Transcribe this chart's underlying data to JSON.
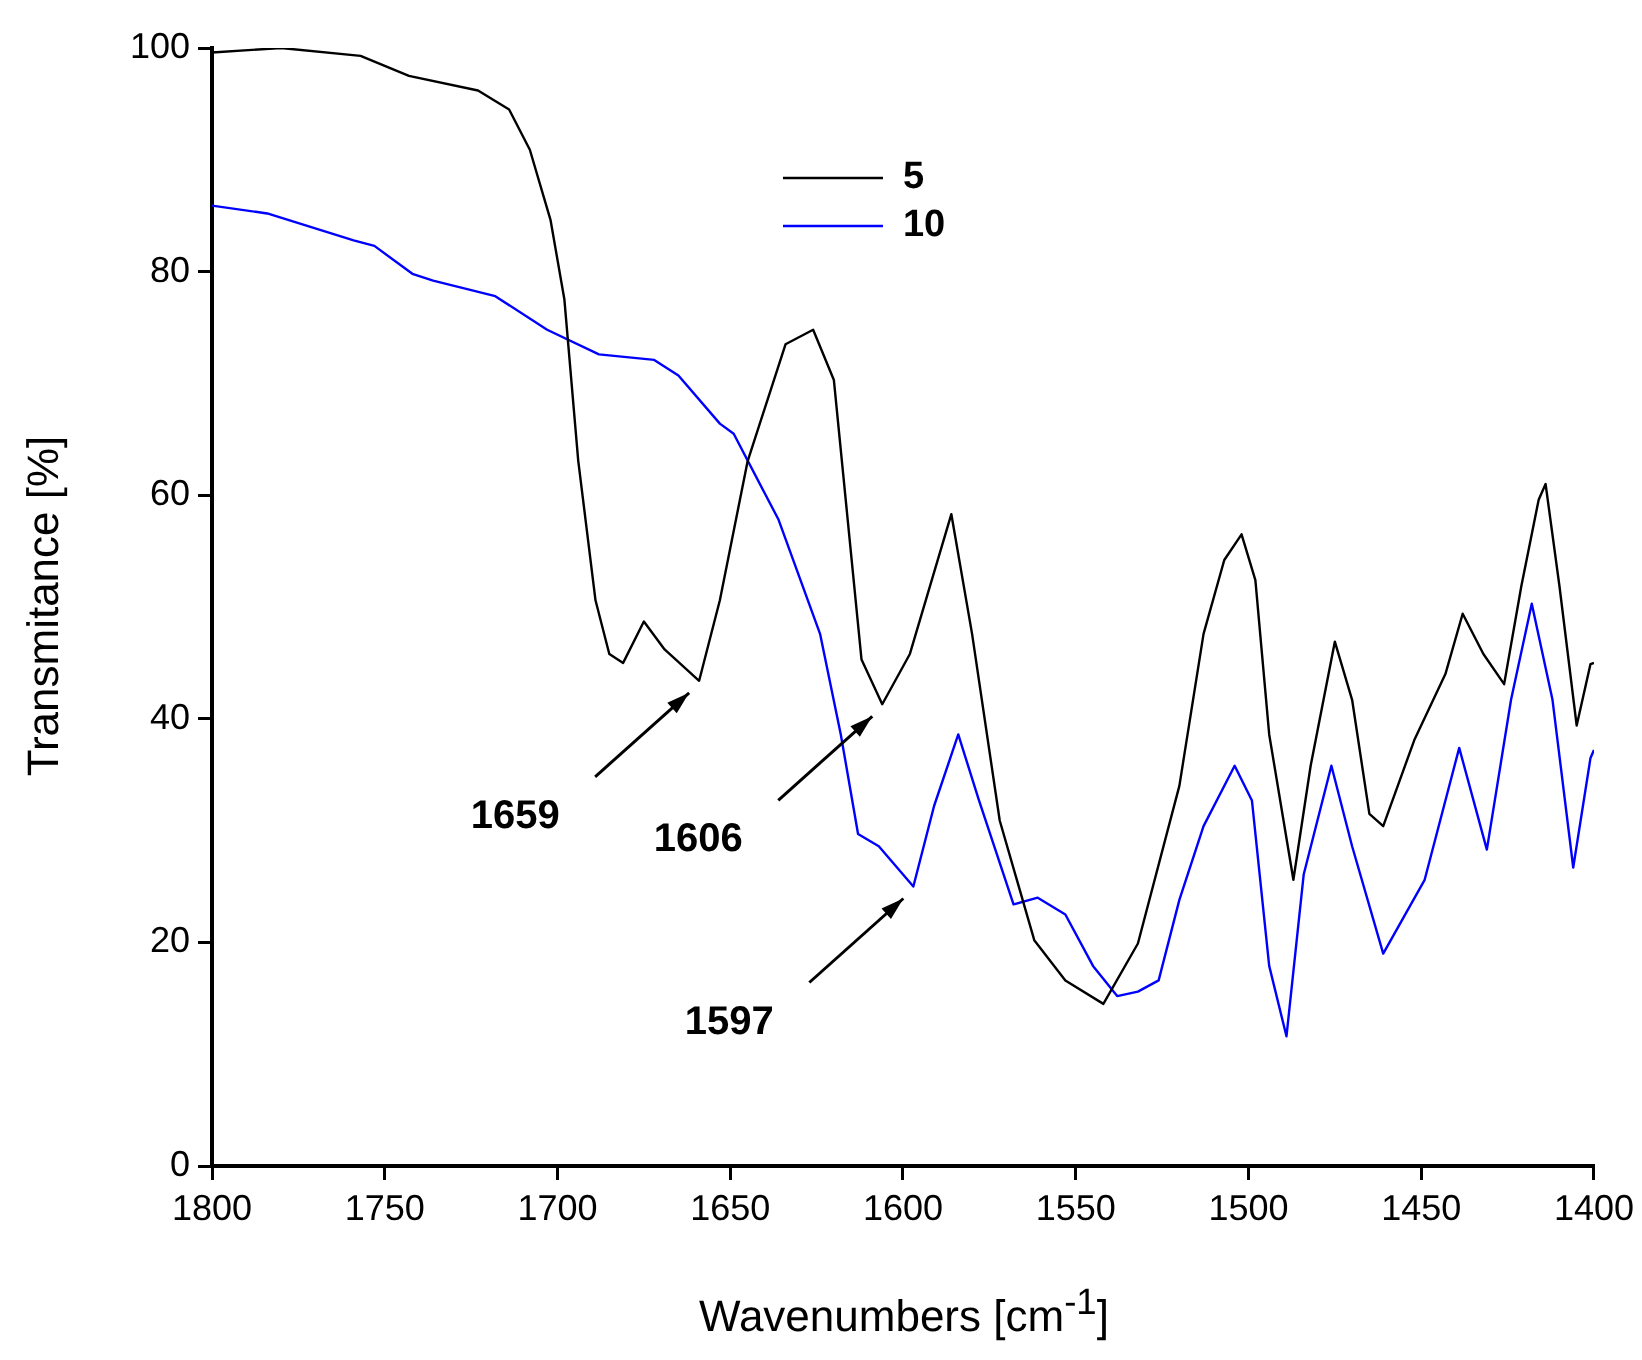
{
  "chart_data": {
    "type": "line",
    "xlabel": "Wavenumbers [cm$^{-1}$]",
    "ylabel": "Transmitance [%]",
    "xlim": [
      1800,
      1400
    ],
    "xticks": [
      1800,
      1750,
      1700,
      1650,
      1600,
      1550,
      1500,
      1450,
      1400
    ],
    "ylim": [
      0,
      100
    ],
    "yticks": [
      0,
      20,
      40,
      60,
      80,
      100
    ],
    "grid": false,
    "legend": "top",
    "marker": "none",
    "line_style": "solid",
    "series": [
      {
        "name": "5",
        "color": "#000000",
        "x": [
          1800,
          1780,
          1757,
          1743,
          1723,
          1714,
          1708,
          1702,
          1698,
          1694,
          1689,
          1685,
          1681,
          1675,
          1669,
          1659,
          1653,
          1645,
          1634,
          1626,
          1620,
          1616,
          1612,
          1606,
          1598,
          1586,
          1580,
          1572,
          1562,
          1553,
          1542,
          1532,
          1520,
          1513,
          1507,
          1502,
          1498,
          1494,
          1487,
          1482,
          1475,
          1470,
          1465,
          1461,
          1452,
          1443,
          1438,
          1432,
          1426,
          1421,
          1416,
          1414,
          1410,
          1405,
          1401,
          1400
        ],
        "values": [
          99.6,
          100,
          99.3,
          97.5,
          96.2,
          94.5,
          90.9,
          84.6,
          77.5,
          63.1,
          50.6,
          45.8,
          45,
          48.7,
          46.2,
          43.4,
          50.6,
          63,
          73.5,
          74.8,
          70.3,
          57.8,
          45.3,
          41.3,
          45.8,
          58.3,
          47.6,
          30.9,
          20.2,
          16.6,
          14.5,
          19.9,
          34,
          47.6,
          54.2,
          56.5,
          52.4,
          38.6,
          25.6,
          35.8,
          46.9,
          41.7,
          31.5,
          30.4,
          38.1,
          44,
          49.4,
          45.8,
          43.1,
          51.9,
          59.6,
          61,
          51.9,
          39.4,
          44.9,
          45
        ]
      },
      {
        "name": "10",
        "color": "#0000ff",
        "x": [
          1800,
          1784,
          1759,
          1753,
          1742,
          1736,
          1718,
          1703,
          1688,
          1672,
          1665,
          1653,
          1649,
          1636,
          1624,
          1618,
          1613,
          1607,
          1597,
          1591,
          1584,
          1578,
          1568,
          1561,
          1553,
          1545,
          1538,
          1532,
          1526,
          1520,
          1513,
          1504,
          1499,
          1494,
          1489,
          1484,
          1476,
          1470,
          1461,
          1449,
          1439,
          1431,
          1424,
          1418,
          1412,
          1406,
          1401,
          1400
        ],
        "values": [
          85.9,
          85.2,
          82.8,
          82.3,
          79.8,
          79.2,
          77.8,
          74.8,
          72.6,
          72.1,
          70.7,
          66.4,
          65.5,
          57.8,
          47.6,
          38.6,
          29.7,
          28.6,
          25,
          32.2,
          38.6,
          32.7,
          23.4,
          24,
          22.5,
          17.9,
          15.2,
          15.6,
          16.6,
          23.8,
          30.4,
          35.8,
          32.7,
          17.9,
          11.6,
          26.1,
          35.8,
          28.6,
          19,
          25.6,
          37.4,
          28.3,
          41.7,
          50.3,
          41.7,
          26.7,
          36.5,
          37.2
        ]
      }
    ],
    "annotations": [
      {
        "text": "1659",
        "x": 1659,
        "y": 43.4
      },
      {
        "text": "1606",
        "x": 1606,
        "y": 41.3
      },
      {
        "text": "1597",
        "x": 1597,
        "y": 25
      }
    ]
  }
}
